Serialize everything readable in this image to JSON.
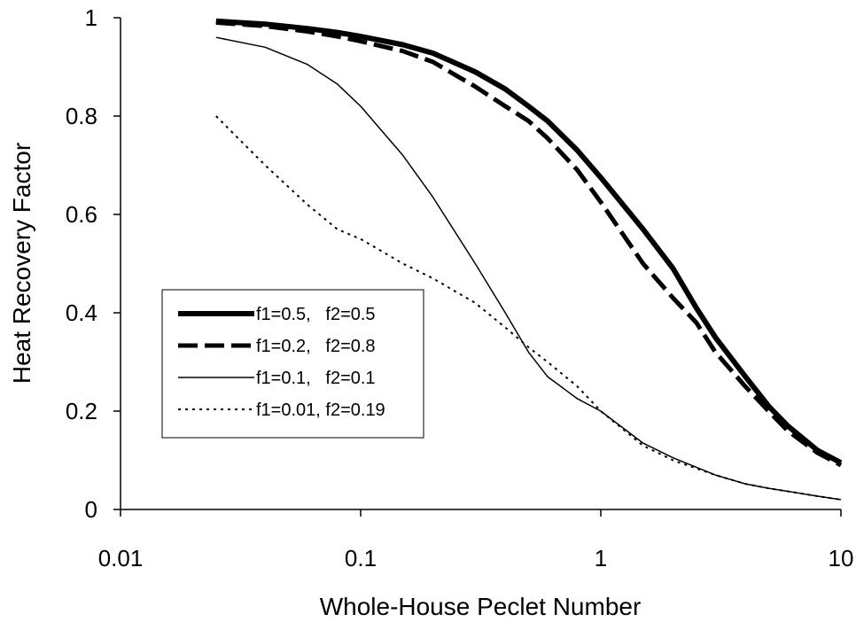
{
  "chart_data": {
    "type": "line",
    "title": "",
    "xlabel": "Whole-House Peclet Number",
    "ylabel": "Heat Recovery Factor",
    "xscale": "log",
    "xlim": [
      0.01,
      10
    ],
    "ylim": [
      0,
      1
    ],
    "xticks": [
      {
        "value": 0.01,
        "label": "0.01"
      },
      {
        "value": 0.1,
        "label": "0.1"
      },
      {
        "value": 1,
        "label": "1"
      },
      {
        "value": 10,
        "label": "10"
      }
    ],
    "yticks": [
      {
        "value": 0,
        "label": "0"
      },
      {
        "value": 0.2,
        "label": "0.2"
      },
      {
        "value": 0.4,
        "label": "0.4"
      },
      {
        "value": 0.6,
        "label": "0.6"
      },
      {
        "value": 0.8,
        "label": "0.8"
      },
      {
        "value": 1,
        "label": "1"
      }
    ],
    "grid": false,
    "legend": "inside-left",
    "series": [
      {
        "name": "f1=0.5,   f2=0.5",
        "style": "thick-solid",
        "x": [
          0.025,
          0.04,
          0.06,
          0.08,
          0.1,
          0.15,
          0.2,
          0.3,
          0.4,
          0.5,
          0.6,
          0.8,
          1.0,
          1.5,
          2.0,
          2.5,
          3.0,
          4.0,
          5.0,
          6.0,
          8.0,
          10.0
        ],
        "y": [
          0.993,
          0.987,
          0.978,
          0.97,
          0.962,
          0.945,
          0.928,
          0.89,
          0.855,
          0.82,
          0.79,
          0.73,
          0.675,
          0.57,
          0.49,
          0.41,
          0.35,
          0.27,
          0.21,
          0.17,
          0.12,
          0.095
        ]
      },
      {
        "name": "f1=0.2,   f2=0.8",
        "style": "thick-dashed",
        "x": [
          0.025,
          0.04,
          0.06,
          0.08,
          0.1,
          0.15,
          0.2,
          0.3,
          0.4,
          0.5,
          0.6,
          0.8,
          1.0,
          1.5,
          2.0,
          2.5,
          3.0,
          4.0,
          5.0,
          6.0,
          8.0,
          10.0
        ],
        "y": [
          0.99,
          0.983,
          0.972,
          0.962,
          0.952,
          0.932,
          0.91,
          0.86,
          0.82,
          0.79,
          0.755,
          0.69,
          0.625,
          0.5,
          0.43,
          0.38,
          0.32,
          0.25,
          0.2,
          0.16,
          0.115,
          0.09
        ]
      },
      {
        "name": "f1=0.1,   f2=0.1",
        "style": "thin-solid",
        "x": [
          0.025,
          0.04,
          0.06,
          0.08,
          0.1,
          0.15,
          0.2,
          0.3,
          0.4,
          0.5,
          0.6,
          0.8,
          1.0,
          1.5,
          2.0,
          3.0,
          4.0,
          5.0,
          6.0,
          8.0,
          10.0
        ],
        "y": [
          0.96,
          0.94,
          0.905,
          0.865,
          0.82,
          0.72,
          0.635,
          0.5,
          0.4,
          0.32,
          0.27,
          0.225,
          0.2,
          0.135,
          0.105,
          0.07,
          0.052,
          0.043,
          0.037,
          0.027,
          0.02
        ]
      },
      {
        "name": "f1=0.01, f2=0.19",
        "style": "dotted",
        "x": [
          0.025,
          0.04,
          0.06,
          0.08,
          0.1,
          0.15,
          0.2,
          0.3,
          0.4,
          0.5,
          0.6,
          0.8,
          1.0,
          1.5,
          2.0,
          3.0,
          4.0,
          5.0,
          6.0,
          8.0,
          10.0
        ],
        "y": [
          0.8,
          0.7,
          0.62,
          0.57,
          0.55,
          0.5,
          0.47,
          0.42,
          0.37,
          0.33,
          0.3,
          0.25,
          0.2,
          0.13,
          0.1,
          0.07,
          0.052,
          0.043,
          0.037,
          0.027,
          0.02
        ]
      }
    ]
  }
}
